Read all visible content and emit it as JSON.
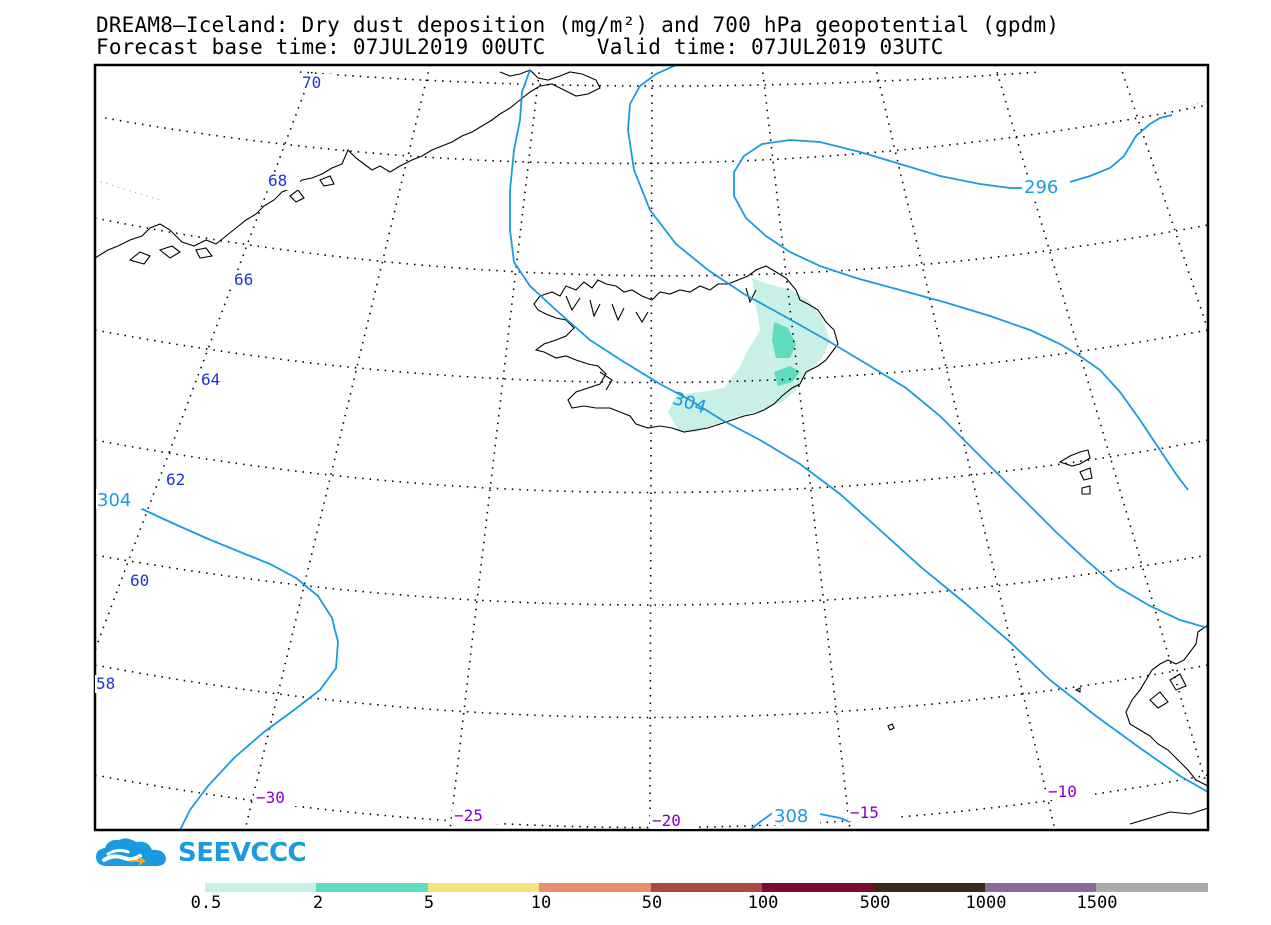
{
  "title": {
    "line1": "DREAM8–Iceland: Dry dust deposition (mg/m²) and 700 hPa geopotential (gpdm)",
    "forecast_base_label": "Forecast base time: 07JUL2019 00UTC",
    "valid_label": "Valid time: 07JUL2019 03UTC"
  },
  "latitude_labels": [
    "70",
    "68",
    "66",
    "64",
    "62",
    "60",
    "58"
  ],
  "longitude_labels": [
    "−30",
    "−25",
    "−20",
    "−15",
    "−10"
  ],
  "contour_labels": {
    "c296": "296",
    "c304_iceland": "304",
    "c304_west": "304",
    "c308": "308"
  },
  "logo": {
    "text": "SEEVCCC",
    "icon": "cloud-arrow-icon"
  },
  "legend": {
    "items": [
      {
        "label": "0.5",
        "color": "#c8f0e6"
      },
      {
        "label": "2",
        "color": "#5fdcc0"
      },
      {
        "label": "5",
        "color": "#f7e37c"
      },
      {
        "label": "10",
        "color": "#e8906a"
      },
      {
        "label": "50",
        "color": "#a84a42"
      },
      {
        "label": "100",
        "color": "#7a0a30"
      },
      {
        "label": "500",
        "color": "#3a2a1a"
      },
      {
        "label": "1000",
        "color": "#8a6a9a"
      },
      {
        "label": "1500",
        "color": "#aaaaaa"
      }
    ]
  },
  "colors": {
    "contour": "#1a9be0",
    "lat_label": "#2233dd",
    "lon_label": "#8800cc",
    "dust_light": "#c8f0e6",
    "dust_medium": "#5fdcc0"
  }
}
